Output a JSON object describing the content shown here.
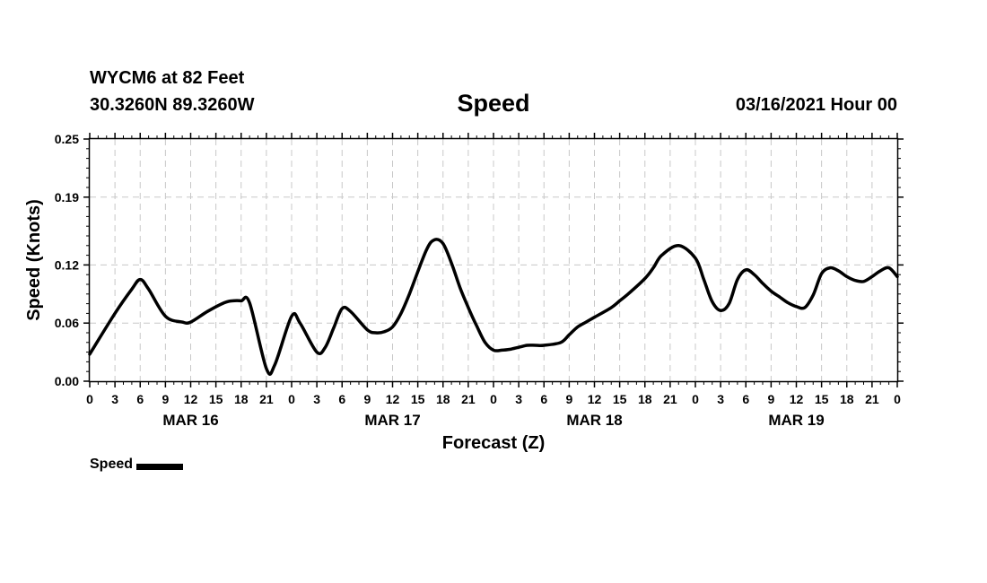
{
  "header": {
    "station": "WYCM6 at 82 Feet",
    "coords": "30.3260N 89.3260W",
    "date": "03/16/2021 Hour 00"
  },
  "legend": {
    "label": "Speed"
  },
  "chart_data": {
    "type": "line",
    "title": "Speed",
    "xlabel": "Forecast (Z)",
    "ylabel": "Speed (Knots)",
    "ylim": [
      0,
      0.25
    ],
    "xlim": [
      0,
      96
    ],
    "y_ticks": [
      0.0,
      0.06,
      0.12,
      0.19,
      0.25
    ],
    "y_tick_labels": [
      "0.00",
      "0.06",
      "0.12",
      "0.19",
      "0.25"
    ],
    "x_tick_labels": [
      "0",
      "3",
      "6",
      "9",
      "12",
      "15",
      "18",
      "21",
      "0",
      "3",
      "6",
      "9",
      "12",
      "15",
      "18",
      "21",
      "0",
      "3",
      "6",
      "9",
      "12",
      "15",
      "18",
      "21",
      "0",
      "3",
      "6",
      "9",
      "12",
      "15",
      "18",
      "21",
      "0"
    ],
    "day_labels": [
      {
        "label": "MAR 16",
        "hour": 12
      },
      {
        "label": "MAR 17",
        "hour": 36
      },
      {
        "label": "MAR 18",
        "hour": 60
      },
      {
        "label": "MAR 19",
        "hour": 84
      }
    ],
    "grid": true,
    "line_color": "#000000",
    "series": [
      {
        "name": "Speed",
        "x": [
          0,
          3,
          5,
          6,
          7,
          9,
          11,
          12,
          14,
          16,
          17,
          18,
          19,
          21,
          22,
          24,
          25,
          27,
          28,
          29,
          30,
          31,
          33,
          34,
          35,
          36,
          37,
          38,
          40,
          41,
          42,
          43,
          44,
          45,
          46,
          47,
          48,
          49,
          50,
          51,
          52,
          53,
          54,
          56,
          57,
          58,
          59,
          60,
          62,
          63,
          64,
          66,
          67,
          68,
          70,
          72,
          73,
          74,
          75,
          76,
          77,
          78,
          79,
          80,
          81,
          82,
          83,
          84,
          85,
          86,
          87,
          88,
          89,
          90,
          91,
          92,
          93,
          94,
          95,
          96
        ],
        "values": [
          0.028,
          0.07,
          0.095,
          0.105,
          0.095,
          0.067,
          0.061,
          0.061,
          0.072,
          0.081,
          0.083,
          0.083,
          0.081,
          0.013,
          0.017,
          0.067,
          0.06,
          0.03,
          0.035,
          0.055,
          0.075,
          0.072,
          0.053,
          0.05,
          0.051,
          0.056,
          0.07,
          0.09,
          0.135,
          0.146,
          0.142,
          0.122,
          0.097,
          0.076,
          0.057,
          0.04,
          0.032,
          0.032,
          0.033,
          0.035,
          0.037,
          0.037,
          0.037,
          0.04,
          0.048,
          0.056,
          0.061,
          0.066,
          0.076,
          0.083,
          0.09,
          0.106,
          0.117,
          0.13,
          0.14,
          0.127,
          0.105,
          0.082,
          0.073,
          0.08,
          0.105,
          0.115,
          0.11,
          0.101,
          0.093,
          0.087,
          0.081,
          0.077,
          0.076,
          0.089,
          0.111,
          0.117,
          0.114,
          0.108,
          0.104,
          0.103,
          0.108,
          0.114,
          0.117,
          0.108
        ]
      }
    ]
  }
}
